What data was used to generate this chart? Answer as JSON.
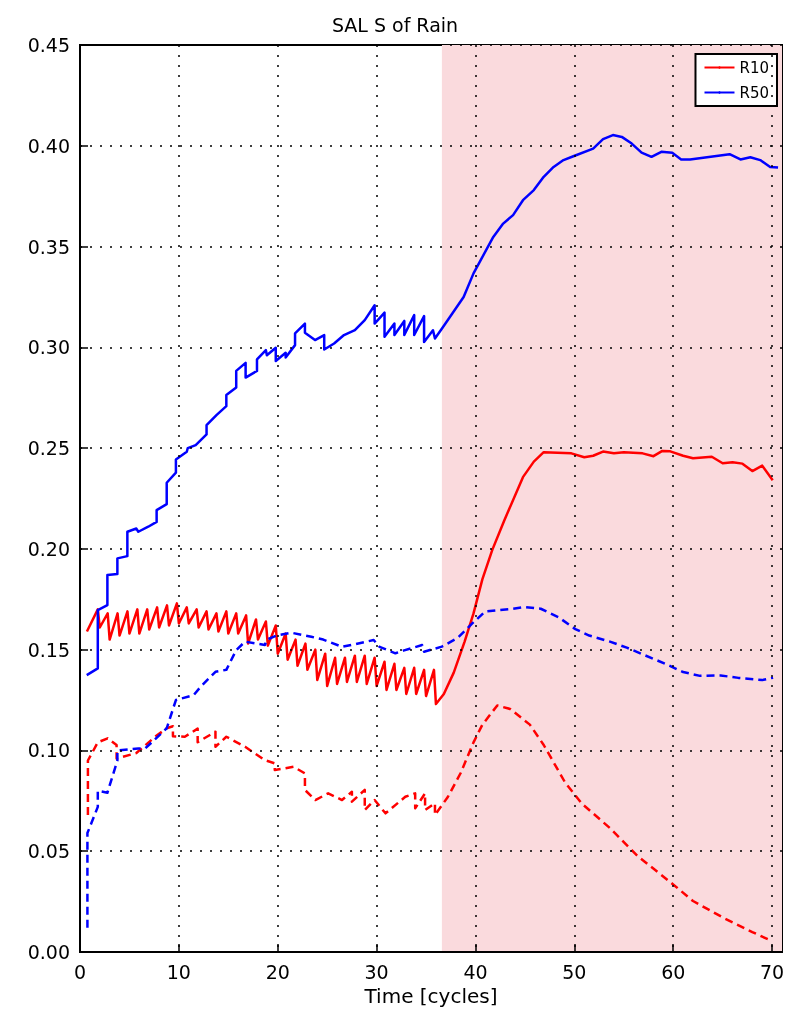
{
  "chart_data": {
    "type": "line",
    "title": "SAL S of Rain",
    "xlabel": "Time [cycles]",
    "xlim": [
      0,
      71
    ],
    "xticks": [
      0,
      10,
      20,
      30,
      40,
      50,
      60,
      70
    ],
    "ylim": [
      0,
      0.45
    ],
    "yticks": [
      {
        "value": 0,
        "label": "0.00"
      },
      {
        "value": 0.05,
        "label": "0.05"
      },
      {
        "value": 0.1,
        "label": "0.10"
      },
      {
        "value": 0.15,
        "label": "0.15"
      },
      {
        "value": 0.2,
        "label": "0.20"
      },
      {
        "value": 0.25,
        "label": "0.25"
      },
      {
        "value": 0.3,
        "label": "0.30"
      },
      {
        "value": 0.35,
        "label": "0.35"
      },
      {
        "value": 0.4,
        "label": "0.40"
      },
      {
        "value": 0.45,
        "label": "0.45"
      }
    ],
    "grid": true,
    "legend": "top right",
    "bands": [
      {
        "axis": "x",
        "from": 36.6,
        "to": 71,
        "color": "#fadadd"
      }
    ],
    "series": [
      {
        "name": "R10",
        "color": "#ff0000",
        "line_style": "solid",
        "x": [
          0.7,
          1.8,
          2.0,
          2.8,
          3.0,
          3.8,
          4.0,
          4.8,
          5.0,
          5.8,
          6.0,
          6.8,
          7.0,
          7.8,
          8.0,
          8.8,
          9.0,
          9.8,
          10.0,
          10.8,
          11.0,
          11.8,
          12.0,
          12.8,
          13.0,
          13.8,
          14.0,
          14.8,
          15.0,
          15.8,
          16.0,
          16.8,
          17.0,
          17.8,
          18.0,
          18.8,
          19.0,
          19.8,
          20.0,
          20.8,
          21.0,
          21.8,
          22.0,
          22.8,
          23.0,
          23.8,
          24.0,
          24.8,
          25.0,
          25.8,
          26.0,
          26.8,
          27.0,
          27.8,
          28.0,
          28.8,
          29.0,
          29.8,
          30.0,
          30.8,
          31.0,
          31.8,
          32.0,
          32.8,
          33.0,
          33.8,
          34.0,
          34.8,
          35.0,
          35.8,
          36.0,
          36.8,
          37.8,
          38.9,
          39.8,
          40.7,
          41.7,
          42.9,
          44.8,
          45.9,
          46.9,
          49.7,
          51.0,
          51.9,
          52.9,
          54.0,
          55.0,
          56.9,
          58.0,
          58.9,
          59.7,
          61.0,
          62.0,
          63.9,
          65.0,
          66.0,
          67.0,
          68.0,
          69.0,
          70.06
        ],
        "values": [
          0.159,
          0.17,
          0.161,
          0.168,
          0.155,
          0.168,
          0.157,
          0.169,
          0.158,
          0.17,
          0.158,
          0.17,
          0.16,
          0.171,
          0.161,
          0.172,
          0.162,
          0.173,
          0.163,
          0.171,
          0.163,
          0.17,
          0.161,
          0.169,
          0.16,
          0.168,
          0.159,
          0.169,
          0.158,
          0.168,
          0.158,
          0.167,
          0.153,
          0.165,
          0.155,
          0.164,
          0.152,
          0.162,
          0.148,
          0.158,
          0.145,
          0.155,
          0.142,
          0.153,
          0.14,
          0.15,
          0.135,
          0.148,
          0.132,
          0.146,
          0.133,
          0.146,
          0.134,
          0.147,
          0.134,
          0.147,
          0.133,
          0.146,
          0.132,
          0.144,
          0.13,
          0.143,
          0.13,
          0.141,
          0.128,
          0.141,
          0.128,
          0.14,
          0.127,
          0.14,
          0.123,
          0.128,
          0.1386,
          0.154,
          0.168,
          0.185,
          0.1995,
          0.214,
          0.2356,
          0.2433,
          0.248,
          0.2474,
          0.2455,
          0.2462,
          0.2483,
          0.2474,
          0.248,
          0.2474,
          0.246,
          0.2486,
          0.2484,
          0.2462,
          0.245,
          0.2457,
          0.2425,
          0.243,
          0.2423,
          0.2386,
          0.2413,
          0.2341
        ]
      },
      {
        "name": "R50",
        "color": "#0000ff",
        "line_style": "solid",
        "x": [
          0.68,
          1.8,
          1.8,
          2.77,
          2.77,
          3.78,
          3.78,
          4.79,
          4.79,
          5.7,
          5.9,
          6.9,
          7.75,
          7.75,
          8.77,
          8.77,
          9.7,
          9.7,
          10.8,
          10.9,
          11.7,
          12.8,
          12.8,
          13.8,
          14.8,
          14.8,
          15.8,
          15.8,
          16.75,
          16.75,
          17.9,
          17.9,
          18.8,
          18.9,
          19.8,
          19.8,
          20.8,
          20.8,
          21.75,
          21.75,
          22.75,
          22.75,
          23.77,
          24.7,
          24.7,
          25.7,
          26.7,
          27.8,
          28.8,
          29.8,
          29.8,
          30.8,
          30.8,
          31.8,
          31.8,
          32.8,
          32.8,
          33.8,
          33.8,
          34.8,
          34.8,
          35.7,
          35.9,
          36.7,
          38.8,
          39.8,
          41.8,
          42.8,
          43.8,
          44.8,
          45.9,
          46.9,
          47.9,
          48.9,
          49.9,
          51.9,
          52.9,
          53.9,
          54.8,
          55.8,
          56.8,
          57.8,
          58.8,
          59.9,
          60.8,
          61.7,
          65.7,
          66.8,
          67.8,
          68.8,
          69.8,
          70.6
        ],
        "values": [
          0.1374,
          0.1407,
          0.1696,
          0.1721,
          0.187,
          0.1875,
          0.1953,
          0.1964,
          0.2085,
          0.2101,
          0.2085,
          0.211,
          0.2134,
          0.2192,
          0.2222,
          0.2328,
          0.2378,
          0.2444,
          0.2482,
          0.25,
          0.2515,
          0.2568,
          0.2614,
          0.2664,
          0.2708,
          0.2763,
          0.2801,
          0.2883,
          0.2923,
          0.285,
          0.2883,
          0.294,
          0.2986,
          0.2961,
          0.2998,
          0.2932,
          0.2973,
          0.295,
          0.3011,
          0.3069,
          0.3118,
          0.3072,
          0.3036,
          0.3061,
          0.2989,
          0.3019,
          0.3061,
          0.3085,
          0.3135,
          0.3209,
          0.3118,
          0.3172,
          0.3052,
          0.3118,
          0.3061,
          0.3131,
          0.3061,
          0.316,
          0.3061,
          0.3155,
          0.3027,
          0.3085,
          0.3044,
          0.31,
          0.325,
          0.3367,
          0.3548,
          0.3614,
          0.3656,
          0.373,
          0.378,
          0.3846,
          0.3895,
          0.3929,
          0.3948,
          0.3986,
          0.4033,
          0.4053,
          0.4044,
          0.4011,
          0.3966,
          0.3945,
          0.397,
          0.3965,
          0.3932,
          0.3932,
          0.3958,
          0.3932,
          0.3943,
          0.3929,
          0.3895,
          0.3892
        ]
      },
      {
        "color": "#ff0000",
        "line_style": "dashed",
        "x": [
          0.8,
          0.8,
          1.8,
          2.8,
          3.7,
          3.7,
          5.7,
          7.6,
          8.77,
          9.4,
          9.4,
          10.6,
          11.9,
          11.9,
          13.7,
          13.7,
          14.8,
          16.7,
          18.7,
          19.7,
          19.7,
          21.6,
          22.75,
          22.75,
          23.8,
          25.1,
          26.5,
          27.5,
          27.5,
          28.8,
          28.8,
          29.8,
          30.9,
          32.9,
          33.9,
          33.9,
          34.9,
          34.9,
          35.9,
          35.9,
          37.2,
          38.5,
          39.8,
          40.7,
          42.2,
          43.5,
          45.5,
          46.9,
          49.1,
          50.8,
          53.6,
          56.4,
          59.9,
          62.0,
          65.1,
          68.0,
          69.9
        ],
        "values": [
          0.068,
          0.095,
          0.104,
          0.106,
          0.1027,
          0.096,
          0.0987,
          0.1068,
          0.111,
          0.112,
          0.107,
          0.1068,
          0.1108,
          0.1041,
          0.1093,
          0.1018,
          0.1068,
          0.1018,
          0.0952,
          0.0936,
          0.0903,
          0.0919,
          0.0886,
          0.0804,
          0.0754,
          0.0787,
          0.0754,
          0.0795,
          0.0746,
          0.0804,
          0.0704,
          0.0754,
          0.0688,
          0.077,
          0.0787,
          0.0713,
          0.0787,
          0.0704,
          0.0738,
          0.068,
          0.0769,
          0.0888,
          0.104,
          0.1128,
          0.1223,
          0.1206,
          0.1128,
          0.1027,
          0.0838,
          0.0734,
          0.0615,
          0.0476,
          0.0339,
          0.0253,
          0.0169,
          0.0099,
          0.0056
        ]
      },
      {
        "color": "#0000ff",
        "line_style": "dashed",
        "x": [
          0.75,
          0.75,
          1.8,
          1.8,
          2.77,
          3.78,
          3.78,
          5.9,
          6.6,
          8.77,
          9.7,
          11.5,
          12.2,
          13.7,
          14.8,
          15.8,
          16.7,
          18.7,
          18.9,
          19.9,
          21.4,
          23.4,
          24.6,
          26.5,
          27.9,
          29.7,
          30.3,
          31.9,
          32.7,
          34.6,
          34.8,
          36.6,
          38.2,
          39.6,
          41.0,
          43.8,
          44.9,
          46.6,
          48.4,
          50.1,
          51.5,
          53.6,
          55.3,
          57.1,
          59.2,
          61.0,
          62.7,
          64.8,
          66.6,
          69.0,
          70.1
        ],
        "values": [
          0.012,
          0.059,
          0.072,
          0.08,
          0.079,
          0.095,
          0.1,
          0.101,
          0.101,
          0.111,
          0.125,
          0.1275,
          0.1316,
          0.139,
          0.14,
          0.1498,
          0.154,
          0.1523,
          0.155,
          0.157,
          0.1584,
          0.1564,
          0.155,
          0.1514,
          0.1528,
          0.1548,
          0.1514,
          0.1482,
          0.1495,
          0.1523,
          0.149,
          0.1515,
          0.1558,
          0.1627,
          0.169,
          0.1703,
          0.1711,
          0.1703,
          0.1661,
          0.1602,
          0.157,
          0.154,
          0.151,
          0.1473,
          0.143,
          0.1389,
          0.137,
          0.1372,
          0.136,
          0.1349,
          0.1361
        ]
      }
    ]
  }
}
